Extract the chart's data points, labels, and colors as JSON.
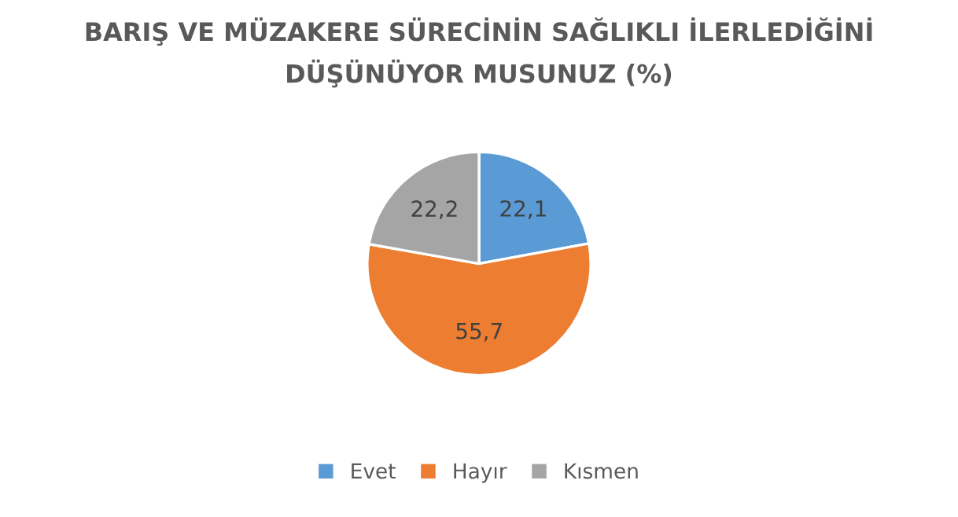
{
  "chart_data": {
    "type": "pie",
    "title": "BARIŞ VE MÜZAKERE SÜRECİNİN SAĞLIKLI İLERLEDİĞİNİ\nDÜŞÜNÜYOR MUSUNUZ (%)",
    "categories": [
      "Evet",
      "Hayır",
      "Kısmen"
    ],
    "values": [
      22.1,
      55.7,
      22.2
    ],
    "colors": [
      "#5b9bd5",
      "#ed7d31",
      "#a5a5a5"
    ],
    "value_labels": [
      "22,1",
      "55,7",
      "22,2"
    ],
    "legend": "bottom"
  }
}
